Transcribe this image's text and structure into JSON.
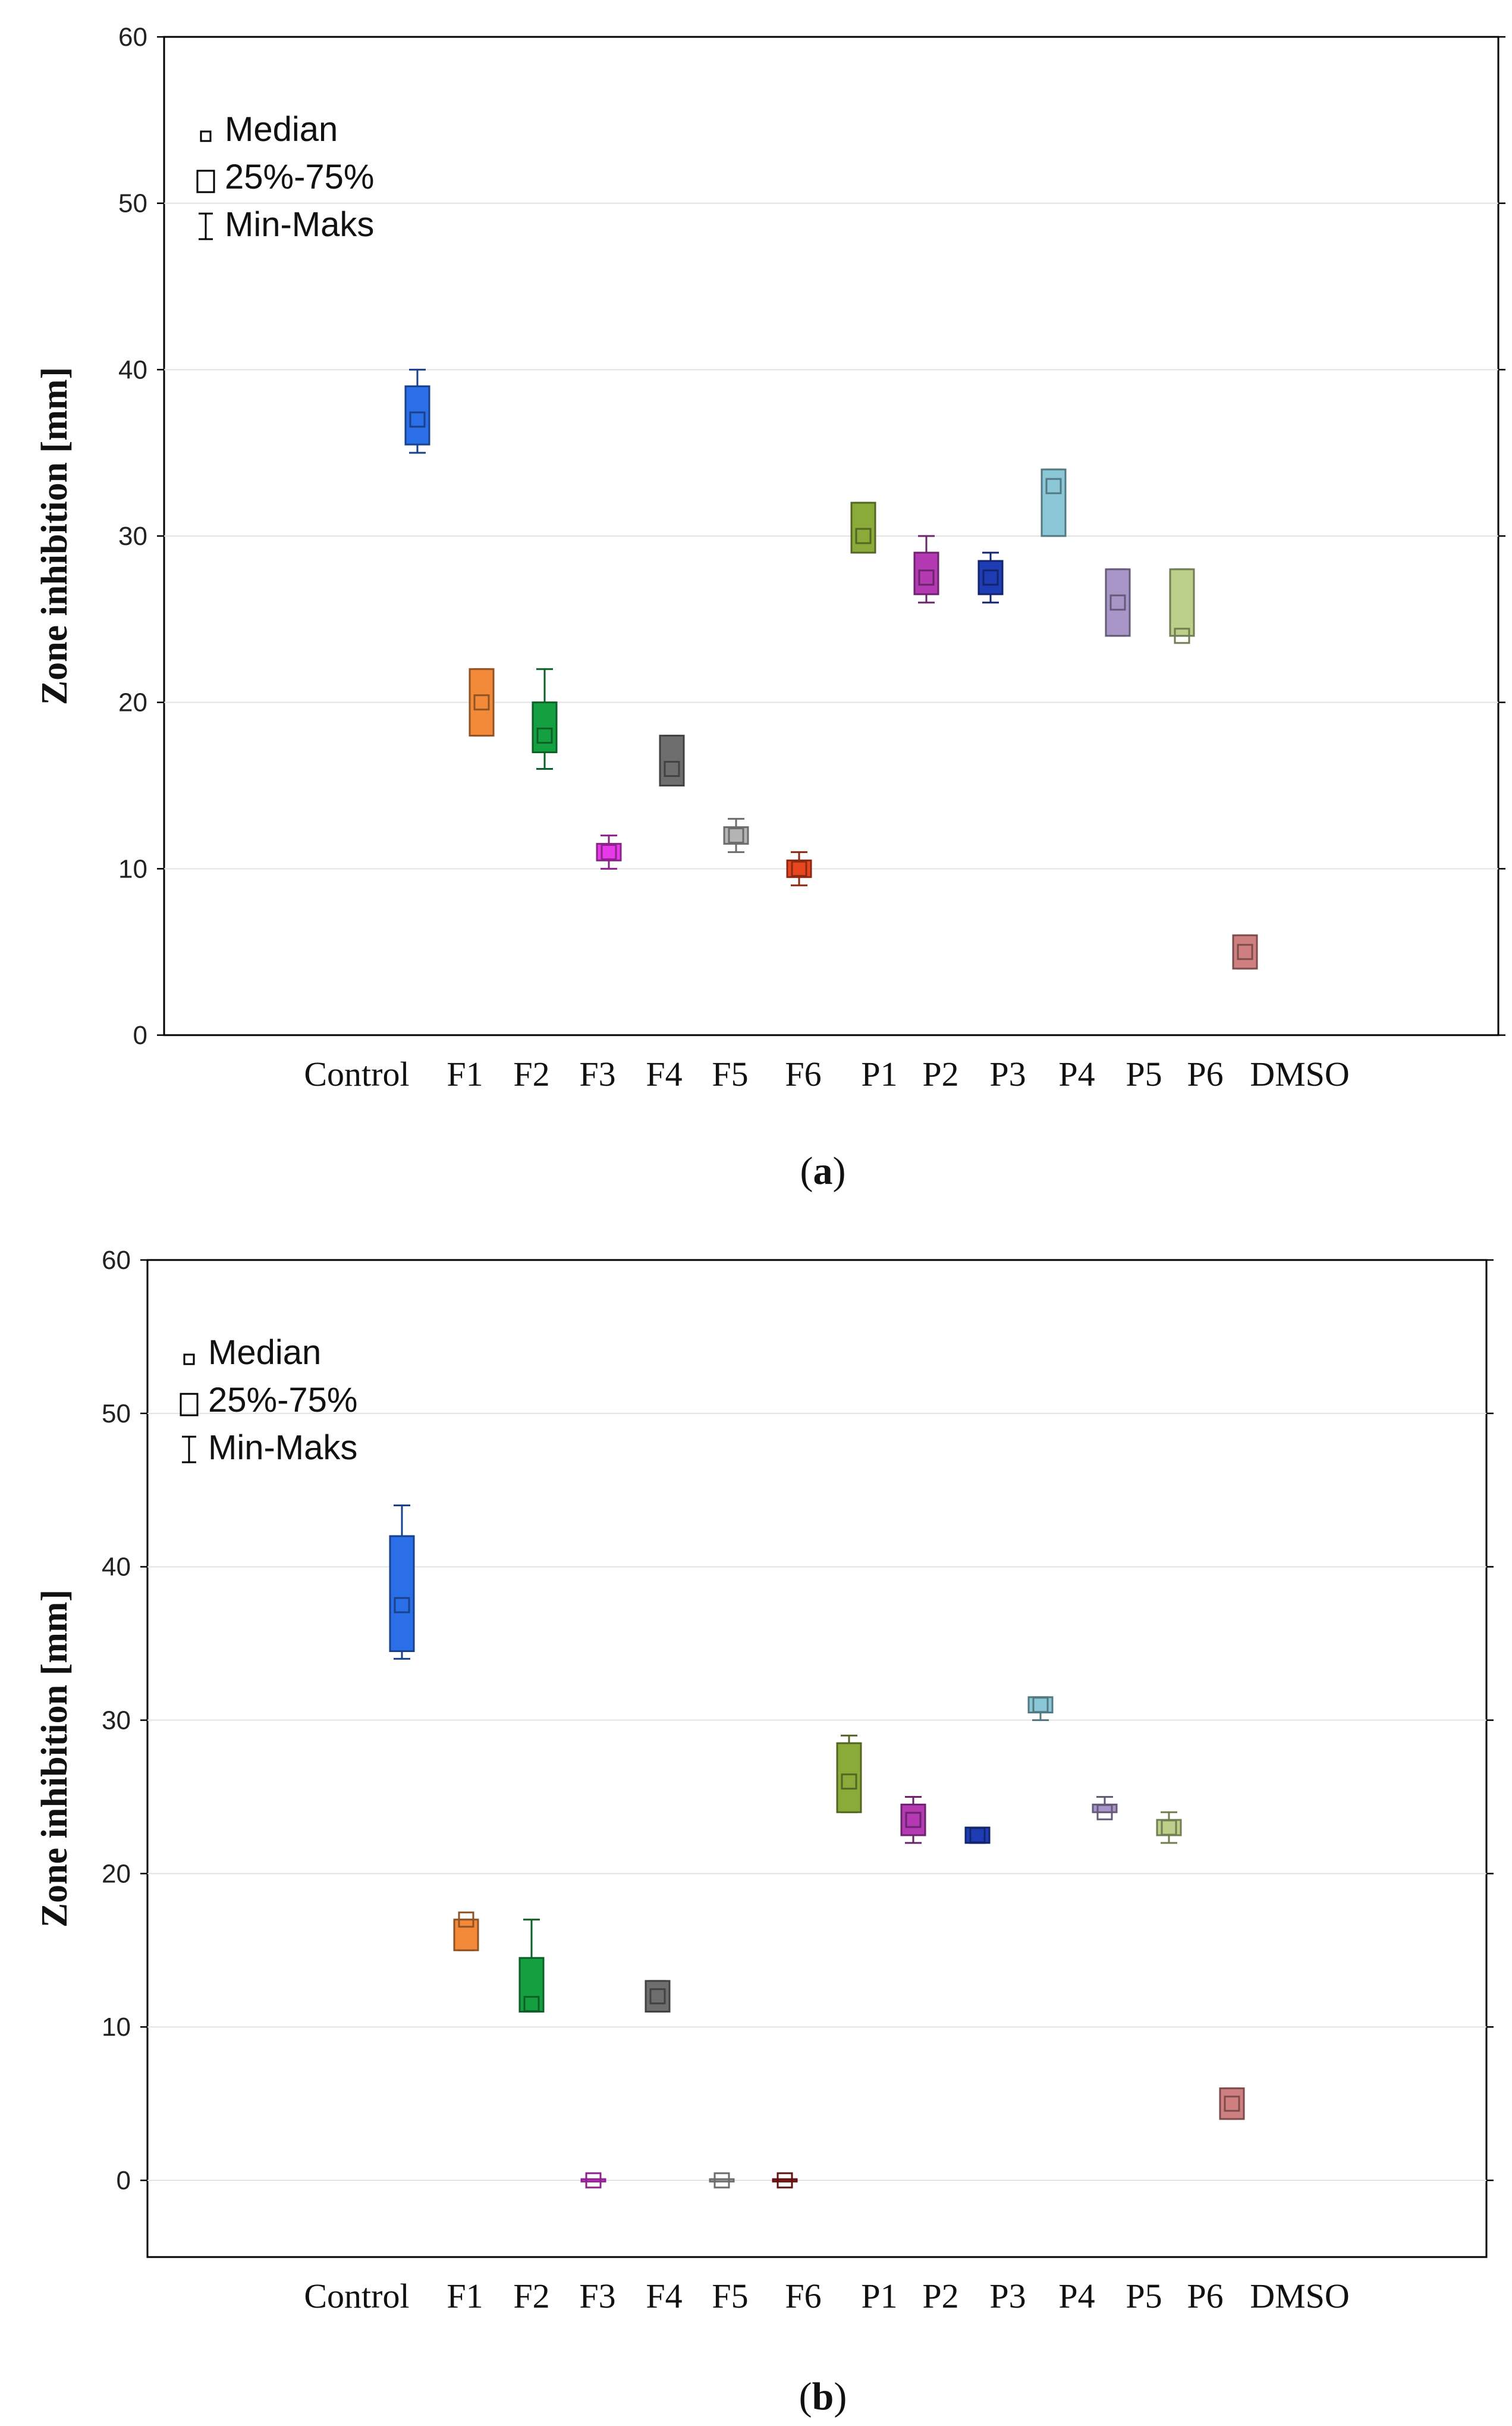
{
  "chart_data": [
    {
      "type": "boxplot",
      "panel": "a",
      "caption_letter": "a",
      "ylabel": "Zone inhibition [mm]",
      "ylim": [
        0,
        60
      ],
      "yticks": [
        0,
        10,
        20,
        30,
        40,
        50,
        60
      ],
      "ytick_labels": [
        "0",
        "10",
        "20",
        "30",
        "40",
        "50",
        "60"
      ],
      "grid": true,
      "legend": {
        "placement": "top-left",
        "entries": [
          "Median",
          "25%-75%",
          "Min-Maks"
        ]
      },
      "categories": [
        "Control",
        "F1",
        "F2",
        "F3",
        "F4",
        "F5",
        "F6",
        "P1",
        "P2",
        "P3",
        "P4",
        "P5",
        "P6",
        "DMSO"
      ],
      "boxes": [
        {
          "label": "Control",
          "min": 35,
          "q1": 35.5,
          "median": 37,
          "q3": 39,
          "max": 40,
          "color": "#2a6ee8"
        },
        {
          "label": "F1",
          "min": 18,
          "q1": 18,
          "median": 20,
          "q3": 22,
          "max": 22,
          "color": "#f28a3a"
        },
        {
          "label": "F2",
          "min": 16,
          "q1": 17,
          "median": 18,
          "q3": 20,
          "max": 22,
          "color": "#14a040"
        },
        {
          "label": "F3",
          "min": 10,
          "q1": 10.5,
          "median": 11,
          "q3": 11.5,
          "max": 12,
          "color": "#e83ae8"
        },
        {
          "label": "F4",
          "min": 15,
          "q1": 15,
          "median": 16,
          "q3": 18,
          "max": 18,
          "color": "#6e6e6e"
        },
        {
          "label": "F5",
          "min": 11,
          "q1": 11.5,
          "median": 12,
          "q3": 12.5,
          "max": 13,
          "color": "#b4b4b4"
        },
        {
          "label": "F6",
          "min": 9,
          "q1": 9.5,
          "median": 10,
          "q3": 10.5,
          "max": 11,
          "color": "#e8461e"
        },
        {
          "label": "P1",
          "min": 29,
          "q1": 29,
          "median": 30,
          "q3": 32,
          "max": 32,
          "color": "#8aaa3a"
        },
        {
          "label": "P2",
          "min": 26,
          "q1": 26.5,
          "median": 27.5,
          "q3": 29,
          "max": 30,
          "color": "#b43ab4"
        },
        {
          "label": "P3",
          "min": 26,
          "q1": 26.5,
          "median": 27.5,
          "q3": 28.5,
          "max": 29,
          "color": "#1e3cb4"
        },
        {
          "label": "P4",
          "min": 30,
          "q1": 30,
          "median": 33,
          "q3": 34,
          "max": 34,
          "color": "#8ac8d8"
        },
        {
          "label": "P5",
          "min": 24,
          "q1": 24,
          "median": 26,
          "q3": 28,
          "max": 28,
          "color": "#a896c8"
        },
        {
          "label": "P6",
          "min": 24,
          "q1": 24,
          "median": 24,
          "q3": 28,
          "max": 28,
          "color": "#bcd08a"
        },
        {
          "label": "DMSO",
          "min": 4,
          "q1": 4,
          "median": 5,
          "q3": 6,
          "max": 6,
          "color": "#d08080"
        }
      ]
    },
    {
      "type": "boxplot",
      "panel": "b",
      "caption_letter": "b",
      "ylabel": "Zone inhibition [mm]",
      "ylim": [
        -5,
        60
      ],
      "yticks": [
        0,
        10,
        20,
        30,
        40,
        50,
        60
      ],
      "ytick_labels": [
        "0",
        "10",
        "20",
        "30",
        "40",
        "50",
        "60"
      ],
      "grid": true,
      "legend": {
        "placement": "top-left",
        "entries": [
          "Median",
          "25%-75%",
          "Min-Maks"
        ]
      },
      "categories": [
        "Control",
        "F1",
        "F2",
        "F3",
        "F4",
        "F5",
        "F6",
        "P1",
        "P2",
        "P3",
        "P4",
        "P5",
        "P6",
        "DMSO"
      ],
      "boxes": [
        {
          "label": "Control",
          "min": 34,
          "q1": 34.5,
          "median": 37.5,
          "q3": 42,
          "max": 44,
          "color": "#2a6ee8"
        },
        {
          "label": "F1",
          "min": 15,
          "q1": 15,
          "median": 17,
          "q3": 17,
          "max": 17,
          "color": "#f28a3a"
        },
        {
          "label": "F2",
          "min": 11,
          "q1": 11,
          "median": 11.5,
          "q3": 14.5,
          "max": 17,
          "color": "#14a040"
        },
        {
          "label": "F3",
          "min": 0,
          "q1": 0,
          "median": 0,
          "q3": 0,
          "max": 0,
          "color": "#e83ae8"
        },
        {
          "label": "F4",
          "min": 11,
          "q1": 11,
          "median": 12,
          "q3": 13,
          "max": 13,
          "color": "#6e6e6e"
        },
        {
          "label": "F5",
          "min": 0,
          "q1": 0,
          "median": 0,
          "q3": 0,
          "max": 0,
          "color": "#b4b4b4"
        },
        {
          "label": "F6",
          "min": 0,
          "q1": 0,
          "median": 0,
          "q3": 0,
          "max": 0,
          "color": "#a01e1e"
        },
        {
          "label": "P1",
          "min": 24,
          "q1": 24,
          "median": 26,
          "q3": 28.5,
          "max": 29,
          "color": "#8aaa3a"
        },
        {
          "label": "P2",
          "min": 22,
          "q1": 22.5,
          "median": 23.5,
          "q3": 24.5,
          "max": 25,
          "color": "#b43ab4"
        },
        {
          "label": "P3",
          "min": 22,
          "q1": 22,
          "median": 22.5,
          "q3": 23,
          "max": 23,
          "color": "#1e3cb4"
        },
        {
          "label": "P4",
          "min": 30,
          "q1": 30.5,
          "median": 31,
          "q3": 31.5,
          "max": 31.5,
          "color": "#8ac8d8"
        },
        {
          "label": "P5",
          "min": 24,
          "q1": 24,
          "median": 24,
          "q3": 24.5,
          "max": 25,
          "color": "#a896c8"
        },
        {
          "label": "P6",
          "min": 22,
          "q1": 22.5,
          "median": 23,
          "q3": 23.5,
          "max": 24,
          "color": "#bcd08a"
        },
        {
          "label": "DMSO",
          "min": 4,
          "q1": 4,
          "median": 5,
          "q3": 6,
          "max": 6,
          "color": "#d08080"
        }
      ]
    }
  ]
}
